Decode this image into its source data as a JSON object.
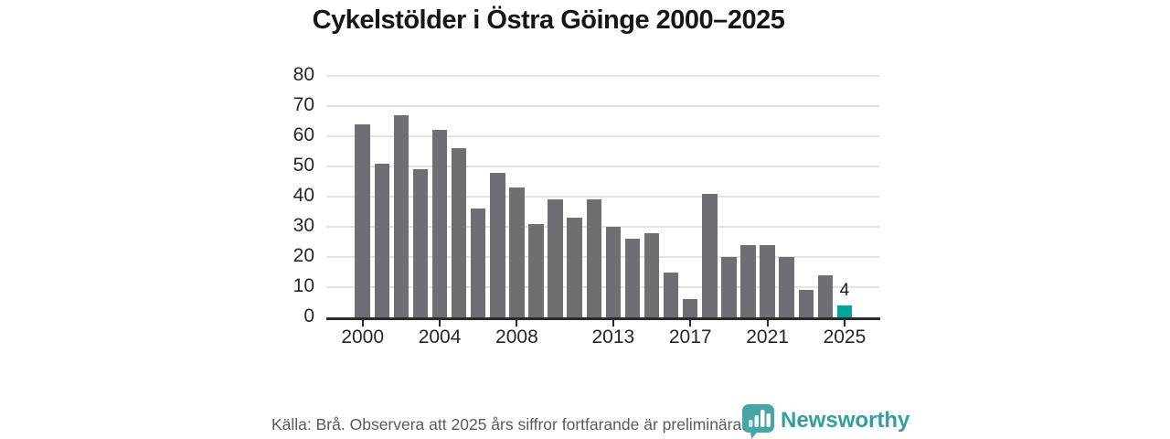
{
  "title": "Cykelstölder i Östra Göinge 2000–2025",
  "footer": {
    "source_note": "Källa: Brå. Observera att 2025 års siffror fortfarande är preliminära."
  },
  "branding": {
    "name": "Newsworthy",
    "logo_icon": "bar-chart-bubble-icon",
    "color": "#2f9fa0",
    "icon_color": "#47a6a5"
  },
  "chart_data": {
    "type": "bar",
    "title": "Cykelstölder i Östra Göinge 2000–2025",
    "categories": [
      2000,
      2001,
      2002,
      2003,
      2004,
      2005,
      2006,
      2007,
      2008,
      2009,
      2010,
      2011,
      2012,
      2013,
      2014,
      2015,
      2016,
      2017,
      2018,
      2019,
      2020,
      2021,
      2022,
      2023,
      2024,
      2025
    ],
    "values": [
      64,
      51,
      67,
      49,
      62,
      56,
      36,
      48,
      43,
      31,
      39,
      33,
      39,
      30,
      26,
      28,
      15,
      6,
      41,
      20,
      24,
      24,
      20,
      9,
      14,
      4
    ],
    "highlight_index": 25,
    "highlight_label": "4",
    "xlabel": "",
    "ylabel": "",
    "ylim": [
      0,
      80
    ],
    "yticks": [
      0,
      10,
      20,
      30,
      40,
      50,
      60,
      70,
      80
    ],
    "xticks_labeled": [
      2000,
      2004,
      2008,
      2013,
      2017,
      2021,
      2025
    ],
    "grid": "horizontal",
    "legend": "none",
    "colors": {
      "bar": "#6e6e75",
      "highlight": "#00a59a",
      "gridline": "#e4e4e6",
      "axis": "#2b2b2e"
    }
  }
}
